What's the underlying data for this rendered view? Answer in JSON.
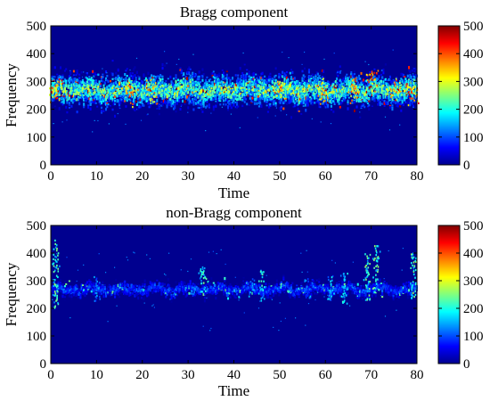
{
  "chart_data": [
    {
      "type": "heatmap",
      "title": "Bragg component",
      "xlabel": "Time",
      "ylabel": "Frequency",
      "xlim": [
        0,
        80
      ],
      "ylim": [
        0,
        500
      ],
      "xticks": [
        0,
        10,
        20,
        30,
        40,
        50,
        60,
        70,
        80
      ],
      "yticks": [
        0,
        100,
        200,
        300,
        400,
        500
      ],
      "colormap": "jet",
      "clim": [
        0,
        500
      ],
      "colorbar_ticks": [
        0,
        100,
        200,
        300,
        400,
        500
      ],
      "background_color": "#00008f",
      "band": {
        "center_frequency": 270,
        "half_width": 45,
        "typical_intensity": 250,
        "peak_intensity": 500
      },
      "hotspots": [
        {
          "time": 1,
          "frequency": 270,
          "intensity": 450
        },
        {
          "time": 17,
          "frequency": 270,
          "intensity": 420
        },
        {
          "time": 22,
          "frequency": 265,
          "intensity": 380
        },
        {
          "time": 50,
          "frequency": 275,
          "intensity": 400
        },
        {
          "time": 59,
          "frequency": 270,
          "intensity": 380
        },
        {
          "time": 66,
          "frequency": 275,
          "intensity": 420
        },
        {
          "time": 70,
          "frequency": 320,
          "intensity": 480
        },
        {
          "time": 75,
          "frequency": 270,
          "intensity": 400
        },
        {
          "time": 79,
          "frequency": 265,
          "intensity": 450
        }
      ]
    },
    {
      "type": "heatmap",
      "title": "non-Bragg component",
      "xlabel": "Time",
      "ylabel": "Frequency",
      "xlim": [
        0,
        80
      ],
      "ylim": [
        0,
        500
      ],
      "xticks": [
        0,
        10,
        20,
        30,
        40,
        50,
        60,
        70,
        80
      ],
      "yticks": [
        0,
        100,
        200,
        300,
        400,
        500
      ],
      "colormap": "jet",
      "clim": [
        0,
        500
      ],
      "colorbar_ticks": [
        0,
        100,
        200,
        300,
        400,
        500
      ],
      "background_color": "#00008f",
      "band": {
        "center_frequency": 270,
        "half_width": 18,
        "typical_intensity": 100,
        "peak_intensity": 250
      },
      "vertical_streaks": [
        {
          "time": 1,
          "frequency_min": 200,
          "frequency_max": 450,
          "intensity": 230
        },
        {
          "time": 10,
          "frequency_min": 230,
          "frequency_max": 320,
          "intensity": 140
        },
        {
          "time": 31,
          "frequency_min": 240,
          "frequency_max": 300,
          "intensity": 120
        },
        {
          "time": 33,
          "frequency_min": 260,
          "frequency_max": 370,
          "intensity": 220
        },
        {
          "time": 44,
          "frequency_min": 240,
          "frequency_max": 310,
          "intensity": 140
        },
        {
          "time": 46,
          "frequency_min": 230,
          "frequency_max": 340,
          "intensity": 200
        },
        {
          "time": 56,
          "frequency_min": 240,
          "frequency_max": 310,
          "intensity": 140
        },
        {
          "time": 61,
          "frequency_min": 230,
          "frequency_max": 320,
          "intensity": 170
        },
        {
          "time": 64,
          "frequency_min": 210,
          "frequency_max": 330,
          "intensity": 200
        },
        {
          "time": 69,
          "frequency_min": 230,
          "frequency_max": 400,
          "intensity": 230
        },
        {
          "time": 71,
          "frequency_min": 270,
          "frequency_max": 430,
          "intensity": 250
        },
        {
          "time": 79,
          "frequency_min": 230,
          "frequency_max": 400,
          "intensity": 240
        }
      ]
    }
  ]
}
